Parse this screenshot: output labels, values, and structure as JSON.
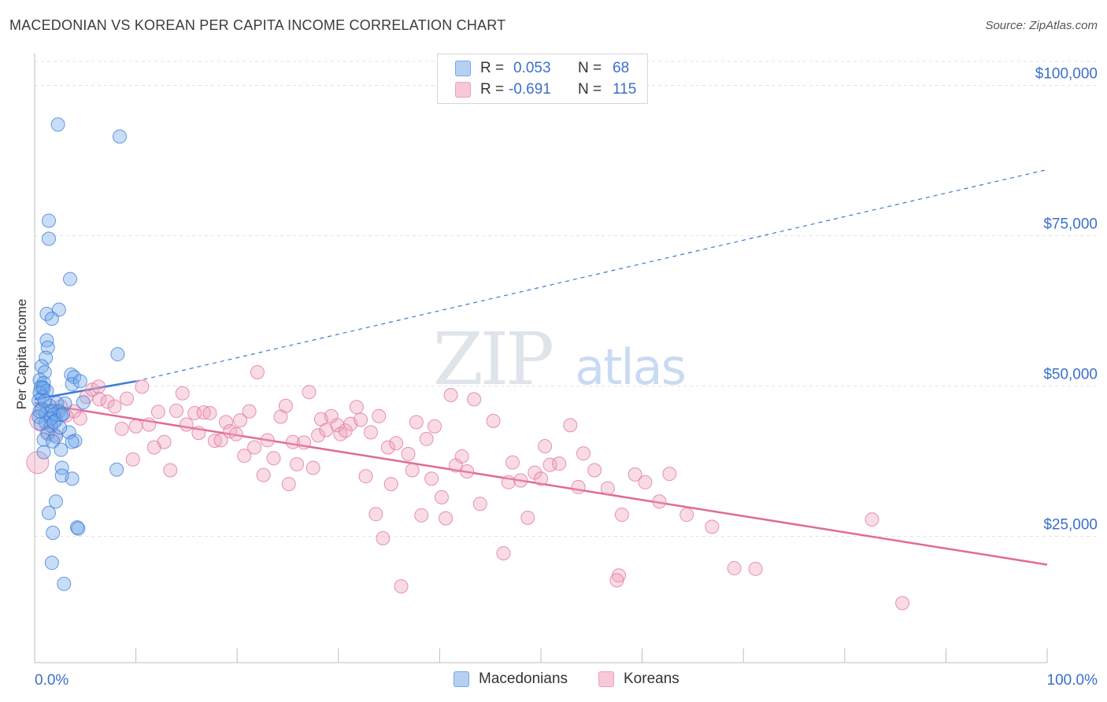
{
  "header": {
    "title": "MACEDONIAN VS KOREAN PER CAPITA INCOME CORRELATION CHART",
    "source": "Source: ZipAtlas.com"
  },
  "watermark": {
    "zip": "ZIP",
    "atlas": "atlas"
  },
  "legend": {
    "rows": [
      {
        "r_label": "R =",
        "r_value": "0.053",
        "n_label": "N =",
        "n_value": "68",
        "color": "#6fa8ea"
      },
      {
        "r_label": "R =",
        "r_value": "-0.691",
        "n_label": "N =",
        "n_value": "115",
        "color": "#f0a0ba"
      }
    ]
  },
  "chart_data": {
    "type": "scatter",
    "ylabel": "Per Capita Income",
    "xlim": [
      0,
      100
    ],
    "ylim": [
      4000,
      104000
    ],
    "x_tick_labels": [
      "0.0%",
      "100.0%"
    ],
    "y_ticks": [
      {
        "value": 25000,
        "label": "$25,000"
      },
      {
        "value": 50000,
        "label": "$50,000"
      },
      {
        "value": 75000,
        "label": "$75,000"
      },
      {
        "value": 100000,
        "label": "$100,000"
      }
    ],
    "grid": "horizontal dashed",
    "legend_position": "bottom",
    "series": [
      {
        "name": "Macedonians",
        "color": "#6fa8ea",
        "stroke": "#3b78d8",
        "points": [
          [
            2.3,
            93500
          ],
          [
            8.4,
            91500
          ],
          [
            1.4,
            77500
          ],
          [
            1.4,
            74500
          ],
          [
            3.5,
            67800
          ],
          [
            2.4,
            62700
          ],
          [
            1.2,
            62000
          ],
          [
            1.7,
            61200
          ],
          [
            1.2,
            57600
          ],
          [
            1.3,
            56400
          ],
          [
            8.2,
            55300
          ],
          [
            1.1,
            54700
          ],
          [
            0.7,
            53300
          ],
          [
            1.0,
            52300
          ],
          [
            3.6,
            51900
          ],
          [
            3.9,
            51500
          ],
          [
            0.5,
            51000
          ],
          [
            0.9,
            50500
          ],
          [
            3.7,
            50300
          ],
          [
            4.5,
            50800
          ],
          [
            0.6,
            49800
          ],
          [
            0.9,
            49600
          ],
          [
            1.2,
            49200
          ],
          [
            0.5,
            48900
          ],
          [
            0.8,
            48200
          ],
          [
            0.4,
            47600
          ],
          [
            2.2,
            47200
          ],
          [
            3.0,
            47100
          ],
          [
            4.8,
            47300
          ],
          [
            1.5,
            46700
          ],
          [
            0.7,
            46200
          ],
          [
            1.7,
            45900
          ],
          [
            2.4,
            45800
          ],
          [
            1.1,
            45500
          ],
          [
            1.9,
            45300
          ],
          [
            2.6,
            45200
          ],
          [
            0.4,
            44900
          ],
          [
            1.6,
            44600
          ],
          [
            2.1,
            44300
          ],
          [
            1.1,
            43900
          ],
          [
            0.6,
            43700
          ],
          [
            1.6,
            43400
          ],
          [
            3.4,
            42300
          ],
          [
            1.3,
            42100
          ],
          [
            2.1,
            41600
          ],
          [
            0.9,
            41100
          ],
          [
            1.8,
            40800
          ],
          [
            4.0,
            40900
          ],
          [
            3.7,
            40700
          ],
          [
            2.6,
            39400
          ],
          [
            0.9,
            39000
          ],
          [
            2.7,
            36400
          ],
          [
            8.1,
            36100
          ],
          [
            2.7,
            35100
          ],
          [
            3.7,
            34600
          ],
          [
            2.1,
            30800
          ],
          [
            1.4,
            28900
          ],
          [
            4.2,
            26500
          ],
          [
            4.3,
            26300
          ],
          [
            1.8,
            25600
          ],
          [
            1.7,
            20600
          ],
          [
            2.9,
            17100
          ],
          [
            0.5,
            45800
          ],
          [
            2.8,
            45300
          ],
          [
            0.8,
            49800
          ],
          [
            1.0,
            47500
          ],
          [
            1.9,
            44000
          ],
          [
            2.5,
            43100
          ]
        ]
      },
      {
        "name": "Koreans",
        "color": "#f0a0ba",
        "stroke": "#e07098",
        "points": [
          [
            0.3,
            37300
          ],
          [
            1.2,
            42300
          ],
          [
            2.6,
            46600
          ],
          [
            3.9,
            45800
          ],
          [
            4.5,
            44600
          ],
          [
            5.1,
            48200
          ],
          [
            5.7,
            49400
          ],
          [
            6.3,
            49900
          ],
          [
            6.4,
            47800
          ],
          [
            7.2,
            47400
          ],
          [
            7.9,
            46600
          ],
          [
            8.6,
            42900
          ],
          [
            9.1,
            47900
          ],
          [
            9.7,
            37800
          ],
          [
            10.0,
            43300
          ],
          [
            10.6,
            49900
          ],
          [
            11.3,
            43600
          ],
          [
            11.8,
            39800
          ],
          [
            12.2,
            45700
          ],
          [
            12.8,
            40700
          ],
          [
            13.4,
            36000
          ],
          [
            14.0,
            45900
          ],
          [
            14.6,
            48800
          ],
          [
            15.0,
            43600
          ],
          [
            15.8,
            45500
          ],
          [
            16.2,
            42200
          ],
          [
            16.7,
            45600
          ],
          [
            17.3,
            45500
          ],
          [
            17.8,
            40900
          ],
          [
            18.4,
            41000
          ],
          [
            18.9,
            44000
          ],
          [
            19.3,
            42500
          ],
          [
            19.9,
            42000
          ],
          [
            20.3,
            44300
          ],
          [
            20.7,
            38400
          ],
          [
            21.2,
            45800
          ],
          [
            21.7,
            39800
          ],
          [
            22.0,
            52300
          ],
          [
            22.6,
            35200
          ],
          [
            23.0,
            41000
          ],
          [
            23.6,
            38000
          ],
          [
            24.3,
            44900
          ],
          [
            24.8,
            46700
          ],
          [
            25.1,
            33700
          ],
          [
            25.5,
            40700
          ],
          [
            25.9,
            37000
          ],
          [
            26.6,
            40600
          ],
          [
            27.1,
            49000
          ],
          [
            27.5,
            36400
          ],
          [
            28.0,
            41800
          ],
          [
            28.3,
            44500
          ],
          [
            28.8,
            42700
          ],
          [
            29.3,
            45000
          ],
          [
            29.9,
            43500
          ],
          [
            30.2,
            42000
          ],
          [
            30.7,
            42600
          ],
          [
            31.2,
            43700
          ],
          [
            31.8,
            46500
          ],
          [
            32.2,
            44400
          ],
          [
            32.7,
            35000
          ],
          [
            33.2,
            42300
          ],
          [
            33.7,
            28700
          ],
          [
            34.0,
            45000
          ],
          [
            34.4,
            24700
          ],
          [
            34.9,
            39800
          ],
          [
            35.2,
            33700
          ],
          [
            35.7,
            40500
          ],
          [
            36.2,
            16700
          ],
          [
            36.9,
            38700
          ],
          [
            37.3,
            36000
          ],
          [
            37.7,
            44000
          ],
          [
            38.2,
            28500
          ],
          [
            38.7,
            41200
          ],
          [
            39.2,
            34600
          ],
          [
            39.5,
            43300
          ],
          [
            40.2,
            31500
          ],
          [
            40.6,
            28000
          ],
          [
            41.1,
            48500
          ],
          [
            41.6,
            36800
          ],
          [
            42.2,
            38300
          ],
          [
            42.7,
            35800
          ],
          [
            43.4,
            47800
          ],
          [
            44.0,
            30400
          ],
          [
            45.3,
            44200
          ],
          [
            46.3,
            22200
          ],
          [
            46.8,
            34000
          ],
          [
            47.2,
            37300
          ],
          [
            48.0,
            34300
          ],
          [
            48.7,
            28100
          ],
          [
            49.4,
            35600
          ],
          [
            50.0,
            34600
          ],
          [
            50.4,
            40000
          ],
          [
            50.9,
            36900
          ],
          [
            51.8,
            37100
          ],
          [
            52.9,
            43500
          ],
          [
            53.7,
            33200
          ],
          [
            54.2,
            38800
          ],
          [
            55.3,
            36000
          ],
          [
            56.6,
            33000
          ],
          [
            57.7,
            18500
          ],
          [
            58.0,
            28600
          ],
          [
            59.3,
            35300
          ],
          [
            60.3,
            34000
          ],
          [
            61.7,
            30800
          ],
          [
            62.7,
            35400
          ],
          [
            64.4,
            28600
          ],
          [
            66.9,
            26600
          ],
          [
            69.1,
            19700
          ],
          [
            71.2,
            19600
          ],
          [
            82.7,
            27800
          ],
          [
            85.7,
            13900
          ],
          [
            0.6,
            44400
          ],
          [
            2.0,
            41900
          ],
          [
            57.5,
            17700
          ],
          [
            3.1,
            45100
          ]
        ]
      }
    ],
    "trend_lines": [
      {
        "series": "Macedonians",
        "x_start": 0,
        "y_start": 47800,
        "x_end": 10,
        "y_end": 50800,
        "extended_to_x": 100,
        "extended_y": 86000
      },
      {
        "series": "Koreans",
        "x_start": 0,
        "y_start": 47200,
        "x_end": 100,
        "y_end": 20300
      }
    ]
  },
  "bottom_legend": {
    "items": [
      {
        "label": "Macedonians",
        "color": "#6fa8ea"
      },
      {
        "label": "Koreans",
        "color": "#f0a0ba"
      }
    ]
  }
}
